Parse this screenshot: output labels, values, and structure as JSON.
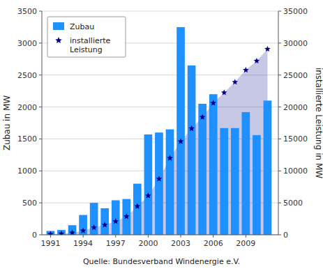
{
  "chart_data": {
    "type": "bar",
    "x": [
      1991,
      1992,
      1993,
      1994,
      1995,
      1996,
      1997,
      1998,
      1999,
      2000,
      2001,
      2002,
      2003,
      2004,
      2005,
      2006,
      2007,
      2008,
      2009,
      2010,
      2011
    ],
    "series": [
      {
        "name": "Zubau",
        "type": "bar",
        "color": "#1E90FF",
        "values": [
          60,
          75,
          150,
          310,
          500,
          415,
          540,
          560,
          800,
          1570,
          1600,
          1650,
          3250,
          2650,
          2050,
          2200,
          1670,
          1670,
          1920,
          1560,
          2100
        ]
      },
      {
        "name": "installierte\nLeistung",
        "type": "area",
        "marker": "star",
        "color": "#00008B",
        "axis": "y2",
        "values": [
          100,
          175,
          325,
          635,
          1135,
          1550,
          2090,
          2875,
          4445,
          6113,
          8754,
          12001,
          14609,
          16629,
          18415,
          20622,
          22247,
          23903,
          25777,
          27215,
          29060
        ]
      }
    ],
    "ylabel": "Zubau in MW",
    "y2label": "installierte Leistung in MW",
    "xlabel": "Quelle: Bundesverband Windenergie e.V.",
    "xlim": [
      1990.2,
      2012.0
    ],
    "xticks": [
      1991,
      1994,
      1997,
      2000,
      2003,
      2006,
      2009
    ],
    "ylim": [
      0,
      3500
    ],
    "yticks": [
      0,
      500,
      1000,
      1500,
      2000,
      2500,
      3000,
      3500
    ],
    "y2lim": [
      0,
      35000
    ],
    "y2ticks": [
      0,
      5000,
      10000,
      15000,
      20000,
      25000,
      30000,
      35000
    ],
    "grid": true,
    "legend": "upper left"
  }
}
